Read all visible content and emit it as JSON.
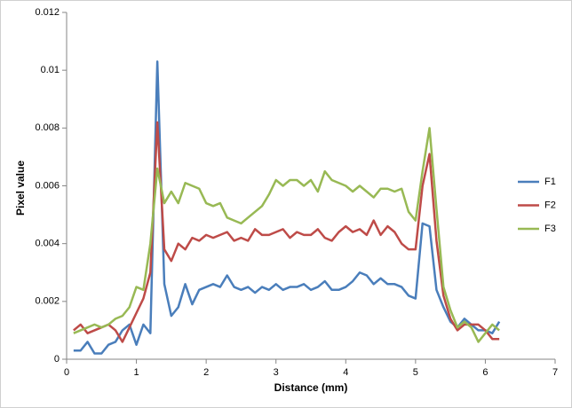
{
  "chart_data": {
    "type": "line",
    "x_label": "Distance (mm)",
    "y_label": "Pixel value",
    "xlim": [
      0,
      7
    ],
    "xticks": [
      0,
      1,
      2,
      3,
      4,
      5,
      6,
      7
    ],
    "ylim": [
      0,
      0.012
    ],
    "yticks": [
      0,
      0.002,
      0.004,
      0.006,
      0.008,
      0.01,
      0.012
    ],
    "grid": false,
    "legend": "right",
    "x": [
      0.1,
      0.2,
      0.3,
      0.4,
      0.5,
      0.6,
      0.7,
      0.8,
      0.9,
      1.0,
      1.1,
      1.2,
      1.3,
      1.4,
      1.5,
      1.6,
      1.7,
      1.8,
      1.9,
      2.0,
      2.1,
      2.2,
      2.3,
      2.4,
      2.5,
      2.6,
      2.7,
      2.8,
      2.9,
      3.0,
      3.1,
      3.2,
      3.3,
      3.4,
      3.5,
      3.6,
      3.7,
      3.8,
      3.9,
      4.0,
      4.1,
      4.2,
      4.3,
      4.4,
      4.5,
      4.6,
      4.7,
      4.8,
      4.9,
      5.0,
      5.1,
      5.2,
      5.3,
      5.4,
      5.5,
      5.6,
      5.7,
      5.8,
      5.9,
      6.0,
      6.1,
      6.2
    ],
    "series": [
      {
        "name": "F1",
        "color": "#4a7ebb",
        "values": [
          0.0003,
          0.0003,
          0.0006,
          0.0002,
          0.0002,
          0.0005,
          0.0006,
          0.001,
          0.0012,
          0.0005,
          0.0012,
          0.0009,
          0.0103,
          0.0026,
          0.0015,
          0.0018,
          0.0026,
          0.0019,
          0.0024,
          0.0025,
          0.0026,
          0.0025,
          0.0029,
          0.0025,
          0.0024,
          0.0025,
          0.0023,
          0.0025,
          0.0024,
          0.0026,
          0.0024,
          0.0025,
          0.0025,
          0.0026,
          0.0024,
          0.0025,
          0.0027,
          0.0024,
          0.0024,
          0.0025,
          0.0027,
          0.003,
          0.0029,
          0.0026,
          0.0028,
          0.0026,
          0.0026,
          0.0025,
          0.0022,
          0.0021,
          0.0047,
          0.0046,
          0.0024,
          0.0018,
          0.0013,
          0.0011,
          0.0014,
          0.0012,
          0.001,
          0.001,
          0.0009,
          0.0013
        ]
      },
      {
        "name": "F2",
        "color": "#be4b48",
        "values": [
          0.001,
          0.0012,
          0.0009,
          0.001,
          0.0011,
          0.0012,
          0.001,
          0.0006,
          0.0011,
          0.0016,
          0.0021,
          0.003,
          0.0082,
          0.0038,
          0.0034,
          0.004,
          0.0038,
          0.0042,
          0.0041,
          0.0043,
          0.0042,
          0.0043,
          0.0044,
          0.0041,
          0.0042,
          0.0041,
          0.0045,
          0.0043,
          0.0043,
          0.0044,
          0.0045,
          0.0042,
          0.0044,
          0.0043,
          0.0043,
          0.0045,
          0.0042,
          0.0041,
          0.0044,
          0.0046,
          0.0044,
          0.0045,
          0.0043,
          0.0048,
          0.0043,
          0.0046,
          0.0044,
          0.004,
          0.0038,
          0.0038,
          0.006,
          0.0071,
          0.0041,
          0.0022,
          0.0014,
          0.001,
          0.0012,
          0.0012,
          0.0012,
          0.001,
          0.0007,
          0.0007
        ]
      },
      {
        "name": "F3",
        "color": "#98b954",
        "values": [
          0.0009,
          0.001,
          0.0011,
          0.0012,
          0.0011,
          0.0012,
          0.0014,
          0.0015,
          0.0018,
          0.0025,
          0.0024,
          0.004,
          0.0066,
          0.0054,
          0.0058,
          0.0054,
          0.0061,
          0.006,
          0.0059,
          0.0054,
          0.0053,
          0.0054,
          0.0049,
          0.0048,
          0.0047,
          0.0049,
          0.0051,
          0.0053,
          0.0057,
          0.0062,
          0.006,
          0.0062,
          0.0062,
          0.006,
          0.0062,
          0.0058,
          0.0065,
          0.0062,
          0.0061,
          0.006,
          0.0058,
          0.006,
          0.0058,
          0.0056,
          0.0059,
          0.0059,
          0.0058,
          0.0059,
          0.0051,
          0.0048,
          0.0065,
          0.008,
          0.0052,
          0.0025,
          0.0017,
          0.0011,
          0.0013,
          0.0011,
          0.0006,
          0.0009,
          0.0012,
          0.001
        ]
      }
    ]
  }
}
